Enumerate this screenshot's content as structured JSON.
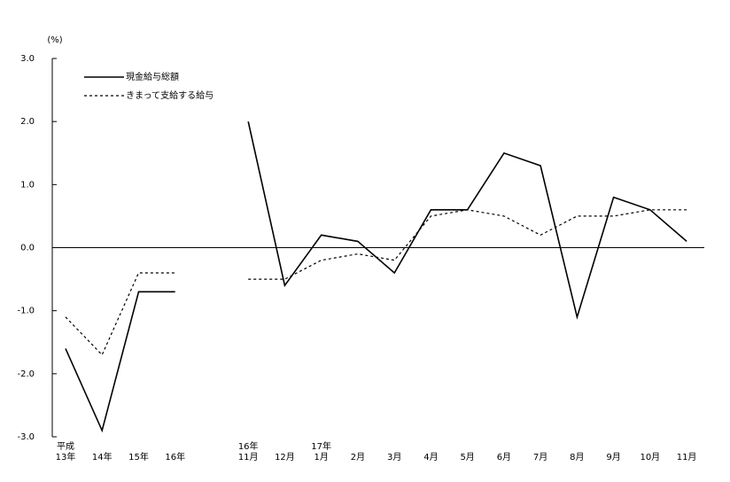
{
  "chart_data": {
    "type": "line",
    "y_unit": "(%)",
    "categories": [
      "平成\n13年",
      "14年",
      "15年",
      "16年",
      null,
      "16年\n11月",
      "12月",
      "17年\n1月",
      "2月",
      "3月",
      "4月",
      "5月",
      "6月",
      "7月",
      "8月",
      "9月",
      "10月",
      "11月"
    ],
    "series": [
      {
        "name": "現金給与総額",
        "color": "#000000",
        "dash": false,
        "values": [
          -1.6,
          -2.9,
          -0.7,
          -0.7,
          null,
          2.0,
          -0.6,
          0.2,
          0.1,
          -0.4,
          0.6,
          0.6,
          1.5,
          1.3,
          -1.1,
          0.8,
          0.6,
          0.1
        ]
      },
      {
        "name": "きまって支給する給与",
        "color": "#000000",
        "dash": true,
        "values": [
          -1.1,
          -1.7,
          -0.4,
          -0.4,
          null,
          -0.5,
          -0.5,
          -0.2,
          -0.1,
          -0.2,
          0.5,
          0.6,
          0.5,
          0.2,
          0.5,
          0.5,
          0.6,
          0.6
        ]
      }
    ],
    "ylim": [
      -3,
      3
    ],
    "yticks": [
      {
        "value": -3,
        "label": "-3.0"
      },
      {
        "value": -2,
        "label": "-2.0"
      },
      {
        "value": -1,
        "label": "-1.0"
      },
      {
        "value": 0,
        "label": "0.0"
      },
      {
        "value": 1,
        "label": "1.0"
      },
      {
        "value": 2,
        "label": "2.0"
      },
      {
        "value": 3,
        "label": "3.0"
      }
    ],
    "legend": "upper left"
  }
}
